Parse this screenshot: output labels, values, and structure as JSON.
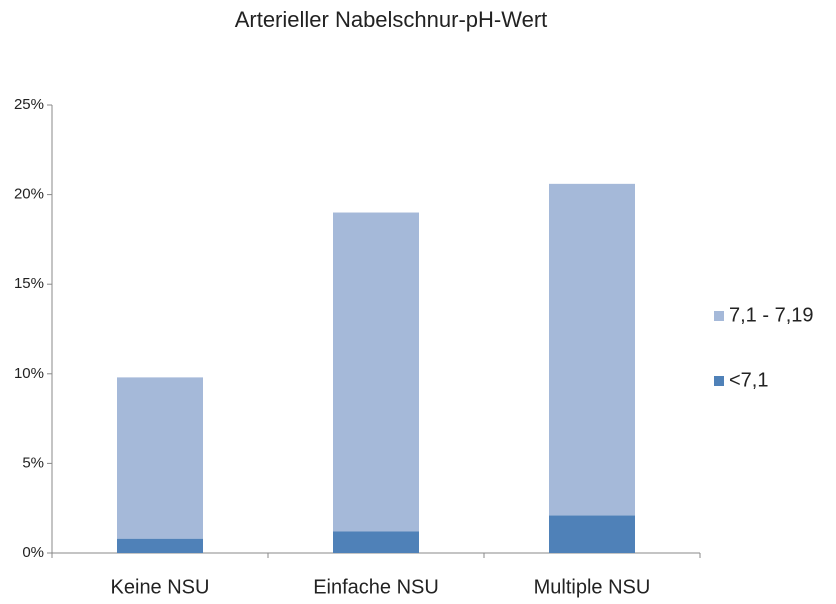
{
  "chart_data": {
    "type": "stacked_bar",
    "title": "Arterieller Nabelschnur-pH-Wert",
    "categories": [
      "Keine NSU",
      "Einfache NSU",
      "Multiple NSU"
    ],
    "series": [
      {
        "name": "<7,1",
        "color": "#4f81b8",
        "values": [
          0.8,
          1.2,
          2.1
        ]
      },
      {
        "name": "7,1 - 7,19",
        "color": "#a5b9d9",
        "values": [
          9.0,
          17.8,
          18.5
        ]
      }
    ],
    "ylim": [
      0,
      25
    ],
    "yticks": [
      {
        "value": 0,
        "label": "0%"
      },
      {
        "value": 5,
        "label": "5%"
      },
      {
        "value": 10,
        "label": "10%"
      },
      {
        "value": 15,
        "label": "15%"
      },
      {
        "value": 20,
        "label": "20%"
      },
      {
        "value": 25,
        "label": "25%"
      }
    ],
    "grid": false,
    "legend": "right"
  }
}
